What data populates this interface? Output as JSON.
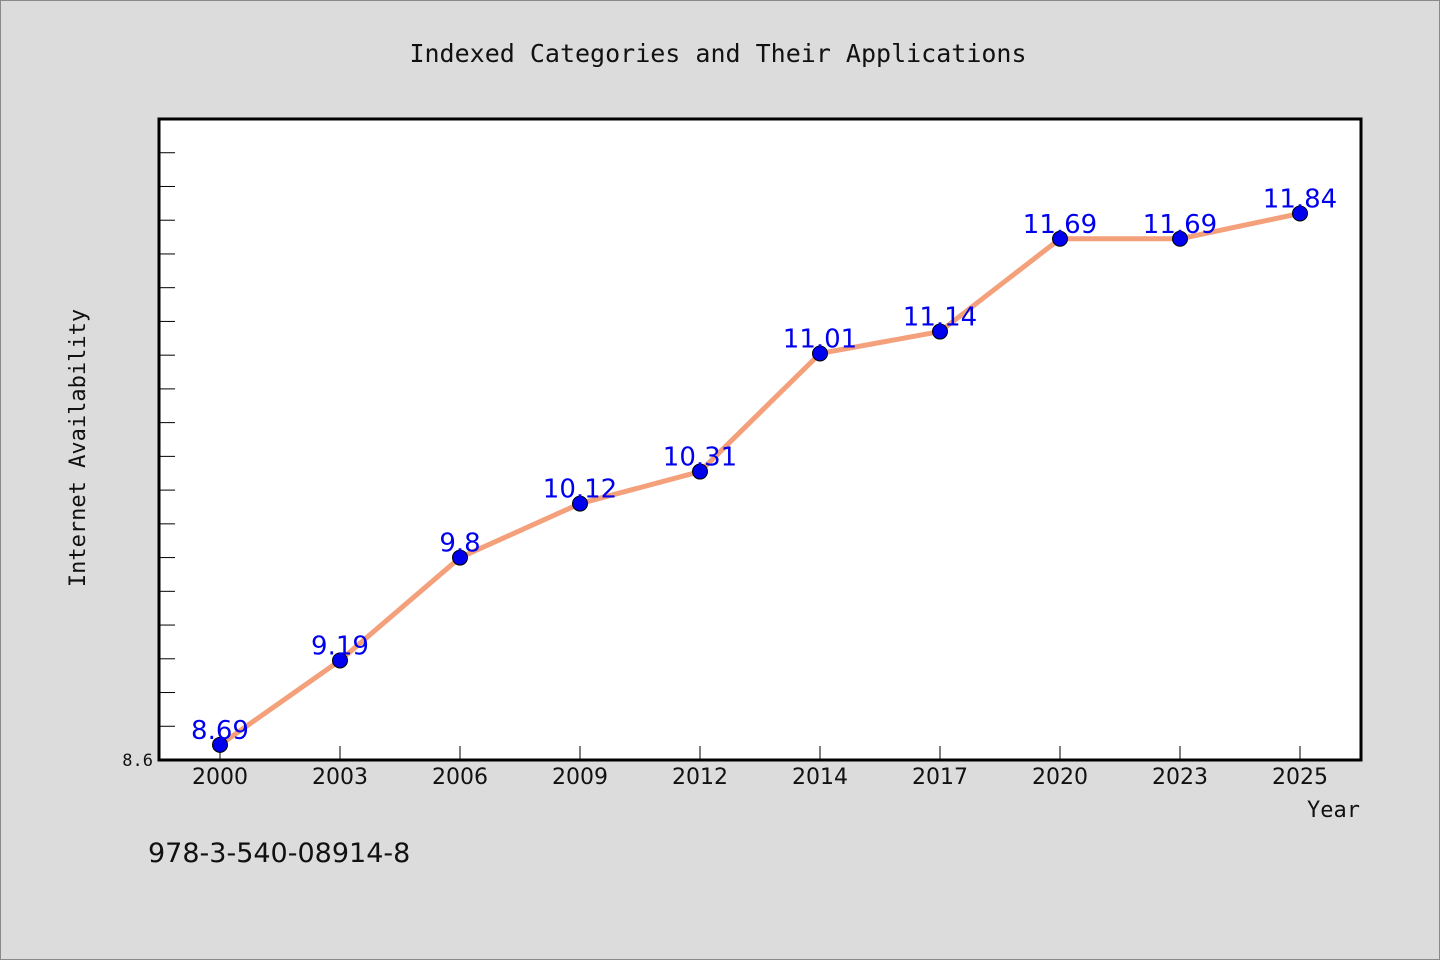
{
  "chart_data": {
    "type": "line",
    "title": "Indexed Categories and Their Applications",
    "xlabel": "Year",
    "ylabel": "Internet Availability",
    "categories": [
      "2000",
      "2003",
      "2006",
      "2009",
      "2012",
      "2014",
      "2017",
      "2020",
      "2023",
      "2025"
    ],
    "values": [
      8.69,
      9.19,
      9.8,
      10.12,
      10.31,
      11.01,
      11.14,
      11.69,
      11.69,
      11.84
    ],
    "ylim": [
      8.6,
      12.4
    ],
    "y_tick_labels": [
      "8.6"
    ],
    "grid": false,
    "legend": "none",
    "colors": {
      "line": "#f4a07a",
      "marker": "#0000ee",
      "data_label": "#0000ee",
      "background": "#dcdcdc",
      "plot_area": "#ffffff"
    }
  },
  "footer": {
    "identifier": "978-3-540-08914-8"
  }
}
